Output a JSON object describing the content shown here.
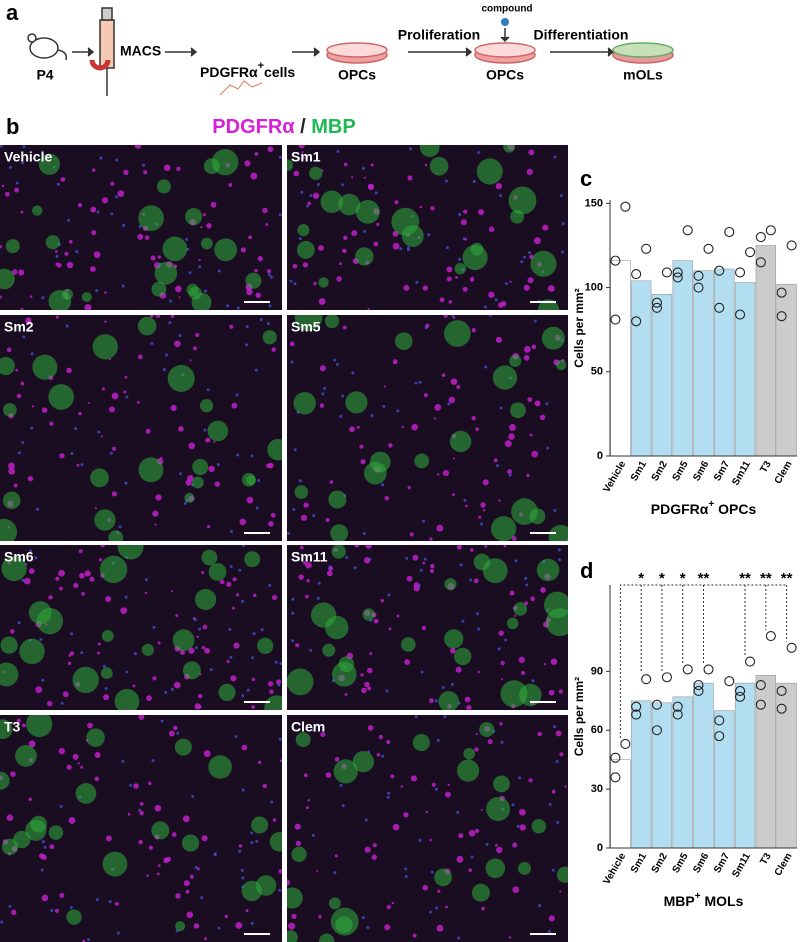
{
  "panels": [
    "a",
    "b",
    "c",
    "d"
  ],
  "workflow": {
    "p4": "P4",
    "macs": "MACS",
    "pdgfra": "PDGFRα",
    "plus": "+",
    "cells": "cells",
    "opcs1": "OPCs",
    "proliferation": "Proliferation",
    "compound": "compound",
    "opcs2": "OPCs",
    "differentiation": "Differentiation",
    "mols": "mOLs"
  },
  "micrographs": {
    "stain1": "PDGFRα",
    "sep": " / ",
    "stain2": "MBP",
    "labels": [
      "Vehicle",
      "Sm1",
      "Sm2",
      "Sm5",
      "Sm6",
      "Sm11",
      "T3",
      "Clem"
    ]
  },
  "chart_data": [
    {
      "type": "bar",
      "ylabel": "Cells per mm²",
      "xlabel_main": "PDGFRα",
      "xlabel_sup": "+",
      "xlabel_rest": " OPCs",
      "categories": [
        "Vehicle",
        "Sm1",
        "Sm2",
        "Sm5",
        "Sm6",
        "Sm7",
        "Sm11",
        "T3",
        "Clem"
      ],
      "values": [
        116,
        104,
        96,
        116,
        110,
        111,
        103,
        125,
        102
      ],
      "colors": [
        "#ffffff",
        "#b3def2",
        "#b3def2",
        "#b3def2",
        "#b3def2",
        "#b3def2",
        "#b3def2",
        "#cccccc",
        "#cccccc"
      ],
      "points": [
        [
          148,
          116,
          81
        ],
        [
          123,
          108,
          80
        ],
        [
          109,
          91,
          88
        ],
        [
          134,
          109,
          106
        ],
        [
          123,
          107,
          100
        ],
        [
          133,
          110,
          88
        ],
        [
          121,
          109,
          84
        ],
        [
          134,
          130,
          115
        ],
        [
          125,
          97,
          83
        ]
      ],
      "ylim": [
        0,
        152
      ],
      "yticks": [
        0,
        50,
        100,
        150
      ]
    },
    {
      "type": "bar",
      "ylabel": "Cells per mm²",
      "xlabel_main": "MBP",
      "xlabel_sup": "+",
      "xlabel_rest": " MOLs",
      "categories": [
        "Vehicle",
        "Sm1",
        "Sm2",
        "Sm5",
        "Sm6",
        "Sm7",
        "Sm11",
        "T3",
        "Clem"
      ],
      "values": [
        45,
        75,
        74,
        77,
        84,
        70,
        84,
        88,
        84
      ],
      "colors": [
        "#ffffff",
        "#b3def2",
        "#b3def2",
        "#b3def2",
        "#b3def2",
        "#b3def2",
        "#b3def2",
        "#cccccc",
        "#cccccc"
      ],
      "points": [
        [
          53,
          46,
          36
        ],
        [
          86,
          72,
          68
        ],
        [
          87,
          73,
          60
        ],
        [
          91,
          72,
          68
        ],
        [
          91,
          83,
          80
        ],
        [
          85,
          65,
          57
        ],
        [
          95,
          80,
          77
        ],
        [
          108,
          83,
          73
        ],
        [
          102,
          80,
          71
        ]
      ],
      "significance": [
        null,
        "*",
        "*",
        "*",
        "**",
        null,
        "**",
        "**",
        "**"
      ],
      "ylim": [
        0,
        134
      ],
      "yticks": [
        0,
        30,
        60,
        90
      ]
    }
  ]
}
